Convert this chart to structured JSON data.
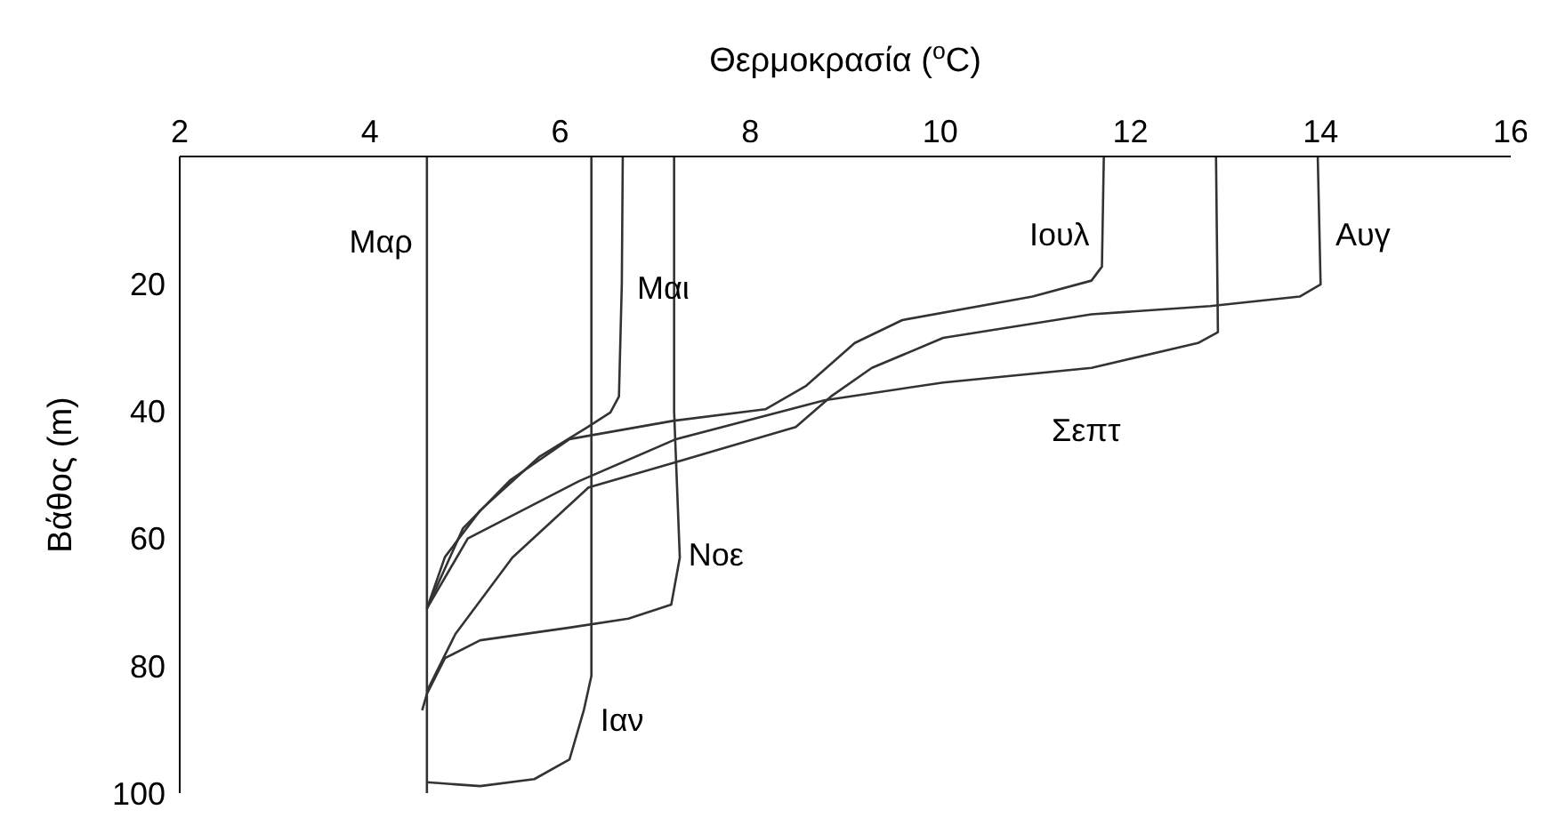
{
  "chart_data": {
    "type": "line",
    "xlabel": "Θερμοκρασία ($^{o}$C)",
    "ylabel": "Βάθος (m)",
    "xlim": [
      2,
      16
    ],
    "xticks": [
      2,
      4,
      6,
      8,
      10,
      12,
      14,
      16
    ],
    "ylim": [
      100,
      0
    ],
    "yticks": [
      20,
      40,
      60,
      80,
      100
    ],
    "series": [
      {
        "name": "Μαρ",
        "color": "#333333",
        "x": [
          4.6,
          4.6
        ],
        "values": [
          0,
          100
        ]
      },
      {
        "name": "Μαι",
        "color": "#333333",
        "x": [
          6.66,
          6.65,
          6.62,
          6.53,
          6.29,
          5.78,
          5.16,
          4.79,
          4.6
        ],
        "values": [
          0,
          20,
          37.7,
          40.2,
          42.5,
          47.2,
          55.6,
          62.9,
          71
        ]
      },
      {
        "name": "Ιουλ",
        "color": "#333333",
        "x": [
          11.72,
          11.7,
          11.59,
          10.97,
          9.6,
          9.1,
          8.59,
          8.16,
          7.2,
          6.1,
          5.48,
          4.98,
          4.6
        ],
        "values": [
          0,
          17.3,
          19.5,
          22,
          25.7,
          29.3,
          36,
          39.7,
          41.5,
          44.4,
          50.8,
          58.4,
          71
        ]
      },
      {
        "name": "Αυγ",
        "color": "#333333",
        "x": [
          13.97,
          14,
          13.78,
          12.84,
          11.59,
          10.03,
          9.28,
          8.85,
          8.48,
          7.22,
          6.3,
          5.5,
          4.9,
          4.6
        ],
        "values": [
          0,
          20.1,
          22,
          23.5,
          24.8,
          28.5,
          33.2,
          37.7,
          42.5,
          48,
          52,
          63,
          75,
          84
        ]
      },
      {
        "name": "Σεπτ",
        "color": "#333333",
        "x": [
          12.9,
          12.92,
          12.71,
          11.59,
          10.03,
          8.78,
          7.22,
          6.2,
          5.03,
          4.6
        ],
        "values": [
          0,
          27.6,
          29.3,
          33.2,
          35.5,
          38.3,
          44.4,
          51,
          60,
          71
        ]
      },
      {
        "name": "Νοε",
        "color": "#333333",
        "x": [
          7.2,
          7.2,
          7.26,
          7.17,
          6.72,
          6.1,
          5.16,
          4.79,
          4.6,
          4.55
        ],
        "values": [
          0,
          40,
          63,
          70.4,
          72.6,
          74,
          76,
          78.8,
          84.4,
          87
        ]
      },
      {
        "name": "Ιαν",
        "color": "#333333",
        "x": [
          6.33,
          6.33,
          6.25,
          6.1,
          5.73,
          5.16,
          4.6
        ],
        "values": [
          0,
          81.6,
          87,
          94.7,
          97.8,
          98.9,
          98.3
        ]
      }
    ]
  }
}
